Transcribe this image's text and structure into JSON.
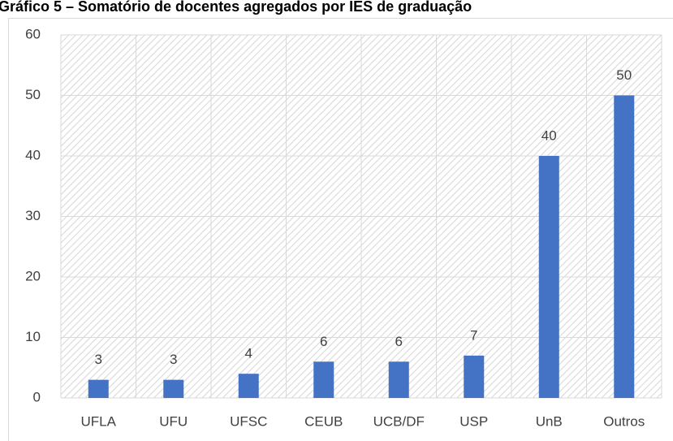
{
  "chart_data": {
    "type": "bar",
    "title": "Gráfico 5 – Somatório de docentes agregados por IES de graduação",
    "categories": [
      "UFLA",
      "UFU",
      "UFSC",
      "CEUB",
      "UCB/DF",
      "USP",
      "UnB",
      "Outros"
    ],
    "values": [
      3,
      3,
      4,
      6,
      6,
      7,
      40,
      50
    ],
    "color": "#4472c4",
    "ylim": [
      0,
      60
    ],
    "yticks": [
      0,
      10,
      20,
      30,
      40,
      50,
      60
    ],
    "grid": true
  }
}
